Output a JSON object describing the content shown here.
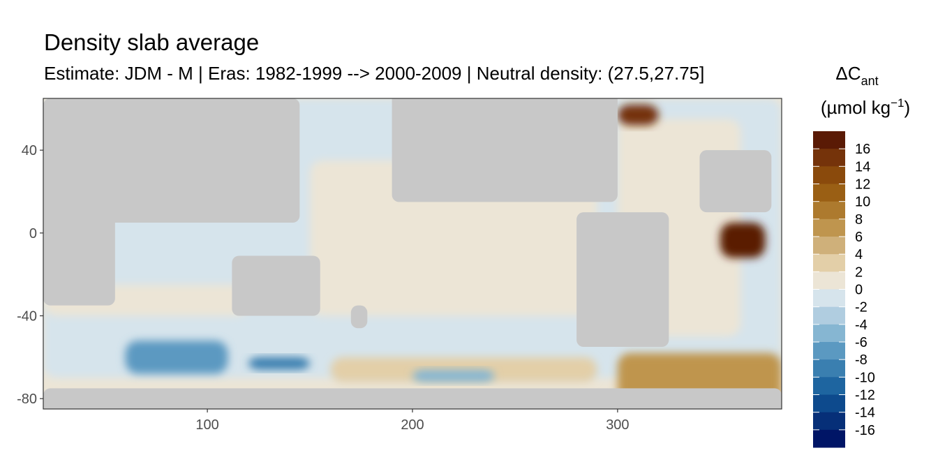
{
  "chart_data": {
    "type": "heatmap",
    "title": "Density slab average",
    "subtitle": "Estimate: JDM - M | Eras: 1982-1999 --> 2000-2009 | Neutral density: (27.5,27.75]",
    "xlabel": "",
    "ylabel": "",
    "xlim": [
      20,
      380
    ],
    "ylim": [
      -85,
      65
    ],
    "x_ticks": [
      100,
      200,
      300
    ],
    "y_ticks": [
      40,
      0,
      -40,
      -80
    ],
    "grid": false,
    "legend": {
      "position": "right",
      "title_main": "ΔC",
      "title_sub": "ant",
      "unit_open": "(µmol kg",
      "unit_sup": "−1",
      "unit_close": ")",
      "labels": [
        "16",
        "14",
        "12",
        "10",
        "8",
        "6",
        "4",
        "2",
        "0",
        "-2",
        "-4",
        "-6",
        "-8",
        "-10",
        "-12",
        "-14",
        "-16"
      ],
      "colors": [
        "#5a1a05",
        "#75330a",
        "#8a4a0c",
        "#9a5f14",
        "#ad7a2e",
        "#bf954e",
        "#cfb07a",
        "#e3cfa8",
        "#ece5d6",
        "#d6e4ec",
        "#b0cde0",
        "#86b6d2",
        "#5b99c1",
        "#3a7fb0",
        "#1e65a0",
        "#0d4a8d",
        "#062f78",
        "#001566"
      ]
    },
    "colors": {
      "land": "#c8c8c8",
      "missing": "#ffffff",
      "background_ocean": "#ece5d6"
    },
    "regions": [
      {
        "kind": "ocean",
        "value": -1,
        "lon": [
          20,
          380
        ],
        "lat": [
          -70,
          65
        ]
      },
      {
        "kind": "ocean",
        "value": 1,
        "lon": [
          150,
          290
        ],
        "lat": [
          -40,
          35
        ]
      },
      {
        "kind": "ocean",
        "value": 1.5,
        "lon": [
          300,
          360
        ],
        "lat": [
          -50,
          55
        ]
      },
      {
        "kind": "ocean",
        "value": 0.5,
        "lon": [
          20,
          120
        ],
        "lat": [
          -40,
          -25
        ]
      },
      {
        "kind": "ocean",
        "value": 3,
        "lon": [
          160,
          290
        ],
        "lat": [
          -72,
          -60
        ]
      },
      {
        "kind": "ocean",
        "value": 18,
        "lon": [
          350,
          372
        ],
        "lat": [
          -12,
          5
        ]
      },
      {
        "kind": "ocean",
        "value": 8,
        "lon": [
          300,
          380
        ],
        "lat": [
          -82,
          -58
        ]
      },
      {
        "kind": "ocean",
        "value": 15,
        "lon": [
          300,
          320
        ],
        "lat": [
          52,
          62
        ]
      },
      {
        "kind": "ocean",
        "value": -7,
        "lon": [
          60,
          110
        ],
        "lat": [
          -68,
          -52
        ]
      },
      {
        "kind": "ocean",
        "value": -9,
        "lon": [
          120,
          150
        ],
        "lat": [
          -66,
          -60
        ]
      },
      {
        "kind": "ocean",
        "value": -4,
        "lon": [
          200,
          240
        ],
        "lat": [
          -72,
          -66
        ]
      },
      {
        "kind": "land",
        "lon": [
          20,
          55
        ],
        "lat": [
          -35,
          37
        ]
      },
      {
        "kind": "land",
        "lon": [
          20,
          145
        ],
        "lat": [
          5,
          65
        ]
      },
      {
        "kind": "land",
        "lon": [
          112,
          155
        ],
        "lat": [
          -40,
          -11
        ]
      },
      {
        "kind": "land",
        "lon": [
          170,
          178
        ],
        "lat": [
          -46,
          -35
        ]
      },
      {
        "kind": "land",
        "lon": [
          280,
          325
        ],
        "lat": [
          -55,
          10
        ]
      },
      {
        "kind": "land",
        "lon": [
          190,
          300
        ],
        "lat": [
          15,
          70
        ]
      },
      {
        "kind": "land",
        "lon": [
          340,
          375
        ],
        "lat": [
          10,
          40
        ]
      },
      {
        "kind": "land",
        "lon": [
          20,
          380
        ],
        "lat": [
          -90,
          -75
        ]
      }
    ]
  }
}
